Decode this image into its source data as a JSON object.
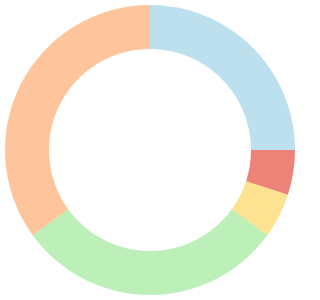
{
  "chart_data": {
    "type": "doughnut",
    "values": [
      25,
      5,
      5,
      30,
      35
    ],
    "colors": [
      "#bde0ef",
      "#ec8278",
      "#fde391",
      "#bdf0b9",
      "#fec59c"
    ]
  }
}
